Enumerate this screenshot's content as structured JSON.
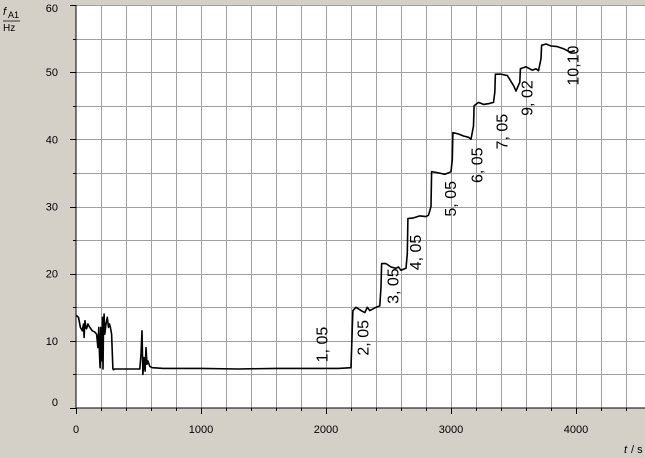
{
  "colors": {
    "background": "#d4d0c8",
    "plot_background": "#ffffff",
    "grid": "#a0a0a0",
    "line": "#000000",
    "text": "#000000"
  },
  "chart_data": {
    "type": "line",
    "title": "",
    "ylabel_symbol": "f",
    "ylabel_subscript": "A1",
    "ylabel_unit": "Hz",
    "xlabel_symbol": "t",
    "xlabel_unit": "/ s",
    "xlim": [
      0,
      4550
    ],
    "ylim": [
      0,
      60
    ],
    "x_ticks": [
      0,
      1000,
      2000,
      3000,
      4000
    ],
    "y_ticks": [
      0,
      10,
      20,
      30,
      40,
      50,
      60
    ],
    "x_minor_step": 200,
    "y_minor_step": 5,
    "grid": true,
    "legend": "none",
    "series": [
      {
        "x": [
          0,
          20,
          35,
          50,
          60,
          65,
          72,
          78,
          85,
          95,
          110,
          130,
          150,
          165,
          175,
          182,
          188,
          193,
          198,
          203,
          208,
          212,
          216,
          220,
          225,
          230,
          240,
          250,
          260,
          268,
          275,
          285,
          295,
          300,
          310,
          500,
          510,
          520,
          528,
          535,
          545,
          553,
          560,
          568,
          575,
          590,
          610,
          700,
          1000,
          1300,
          1600,
          1900,
          2100,
          2200,
          2210,
          2215,
          2240,
          2280,
          2310,
          2330,
          2350,
          2400,
          2430,
          2440,
          2445,
          2480,
          2520,
          2560,
          2580,
          2600,
          2640,
          2650,
          2655,
          2700,
          2750,
          2800,
          2820,
          2840,
          2845,
          2900,
          2950,
          2980,
          3000,
          3010,
          3015,
          3060,
          3100,
          3140,
          3160,
          3180,
          3185,
          3220,
          3260,
          3300,
          3340,
          3350,
          3355,
          3400,
          3450,
          3500,
          3520,
          3550,
          3555,
          3600,
          3650,
          3680,
          3700,
          3720,
          3725,
          3760,
          3800,
          3850,
          3900,
          3950,
          3990
        ],
        "y": [
          13.8,
          13.5,
          12.0,
          11.5,
          12.5,
          10.5,
          13.0,
          12.0,
          11.8,
          12.5,
          12.0,
          11.5,
          11.3,
          11.0,
          9.0,
          12.0,
          8.0,
          6.0,
          12.0,
          9.0,
          7.0,
          13.5,
          5.8,
          12.0,
          14.0,
          11.0,
          12.5,
          13.5,
          12.0,
          12.5,
          12.0,
          11.0,
          5.8,
          5.7,
          5.8,
          5.8,
          5.8,
          8.0,
          11.5,
          5.0,
          7.5,
          5.5,
          9.0,
          6.5,
          7.0,
          6.2,
          6.0,
          5.9,
          5.9,
          5.8,
          5.9,
          5.9,
          5.9,
          6.0,
          12.0,
          14.5,
          15.0,
          14.5,
          14.2,
          15.0,
          14.5,
          15.0,
          15.2,
          18.0,
          21.5,
          21.5,
          21.0,
          20.8,
          21.0,
          20.5,
          20.8,
          23.0,
          28.2,
          28.3,
          28.6,
          28.5,
          28.7,
          30.0,
          35.2,
          35.0,
          34.8,
          35.0,
          35.2,
          37.0,
          41.0,
          40.8,
          40.5,
          40.3,
          40.0,
          42.0,
          45.0,
          45.5,
          45.2,
          45.3,
          45.5,
          47.0,
          49.7,
          49.7,
          49.5,
          48.0,
          47.2,
          48.5,
          50.5,
          50.8,
          50.3,
          50.5,
          50.2,
          52.0,
          54.0,
          54.2,
          53.9,
          53.8,
          53.5,
          53.0,
          53.2
        ]
      }
    ],
    "annotations": [
      {
        "text": "1, 05",
        "x": 2010,
        "y": 6.8
      },
      {
        "text": "2, 05",
        "x": 2340,
        "y": 7.8
      },
      {
        "text": "3, 05",
        "x": 2580,
        "y": 15.5
      },
      {
        "text": "4, 05",
        "x": 2760,
        "y": 20.5
      },
      {
        "text": "5, 05",
        "x": 3040,
        "y": 28.5
      },
      {
        "text": "6, 05",
        "x": 3250,
        "y": 33.5
      },
      {
        "text": "7, 05",
        "x": 3450,
        "y": 38.5
      },
      {
        "text": "9, 02",
        "x": 3650,
        "y": 43.5
      },
      {
        "text": "10,10",
        "x": 4020,
        "y": 48.0
      }
    ]
  }
}
